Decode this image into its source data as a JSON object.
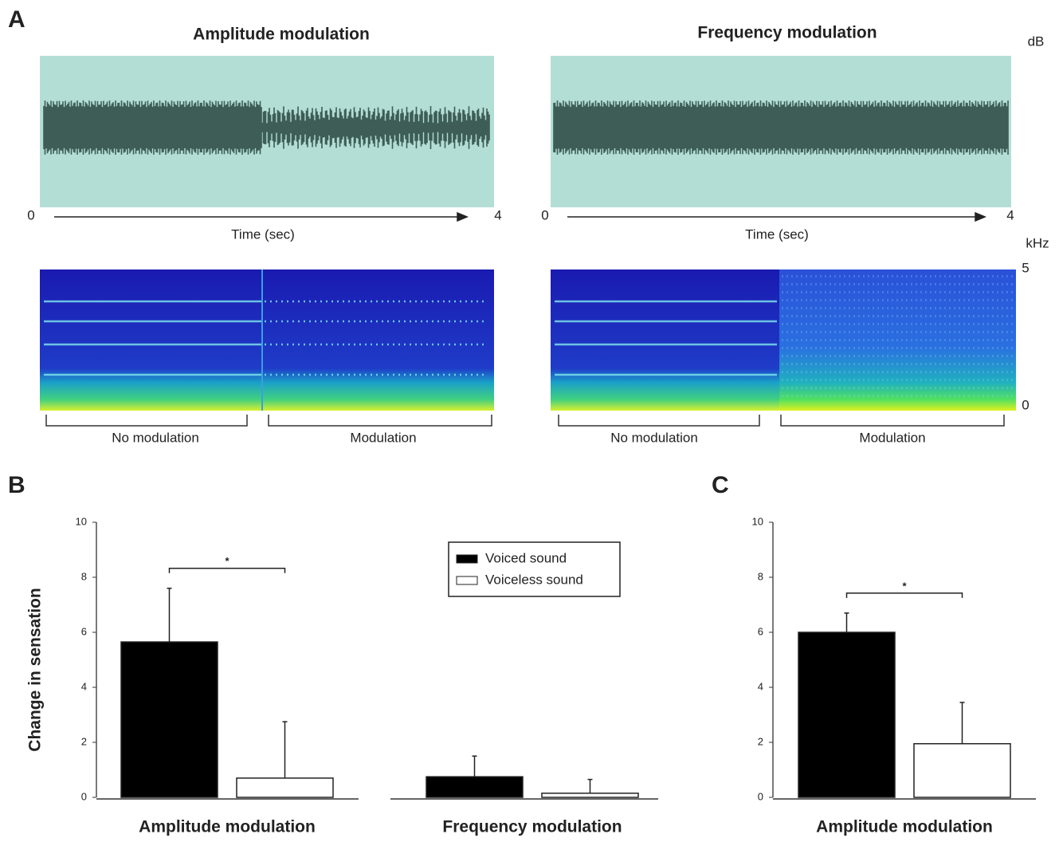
{
  "panel_a": {
    "label": "A",
    "left_title": "Amplitude modulation",
    "right_title": "Frequency modulation",
    "db_label": "dB",
    "khz_label": "kHz",
    "time_start": "0",
    "time_end": "4",
    "time_label": "Time (sec)",
    "freq_top": "5",
    "freq_bottom": "0",
    "no_modulation": "No modulation",
    "modulation": "Modulation"
  },
  "chart_data": [
    {
      "type": "bar",
      "panel": "B",
      "ylabel": "Change in sensation",
      "categories": [
        "Amplitude modulation",
        "Frequency modulation"
      ],
      "series": [
        {
          "name": "Voiced sound",
          "color": "#000000",
          "values": [
            5.65,
            0.75
          ],
          "errors": [
            1.95,
            0.75
          ]
        },
        {
          "name": "Voiceless sound",
          "color": "#ffffff",
          "values": [
            0.7,
            0.15
          ],
          "errors": [
            2.05,
            0.5
          ]
        }
      ],
      "ylim": [
        0,
        10
      ],
      "yticks": [
        0,
        2,
        4,
        6,
        8,
        10
      ],
      "annotations": [
        "*"
      ],
      "legend": "upper center"
    },
    {
      "type": "bar",
      "panel": "C",
      "categories": [
        "Amplitude modulation"
      ],
      "series": [
        {
          "name": "Voiced sound",
          "color": "#000000",
          "values": [
            6.0
          ],
          "errors": [
            0.7
          ]
        },
        {
          "name": "Voiceless sound",
          "color": "#ffffff",
          "values": [
            1.95
          ],
          "errors": [
            1.5
          ]
        }
      ],
      "ylim": [
        0,
        10
      ],
      "yticks": [
        0,
        2,
        4,
        6,
        8,
        10
      ],
      "annotations": [
        "*"
      ]
    }
  ]
}
